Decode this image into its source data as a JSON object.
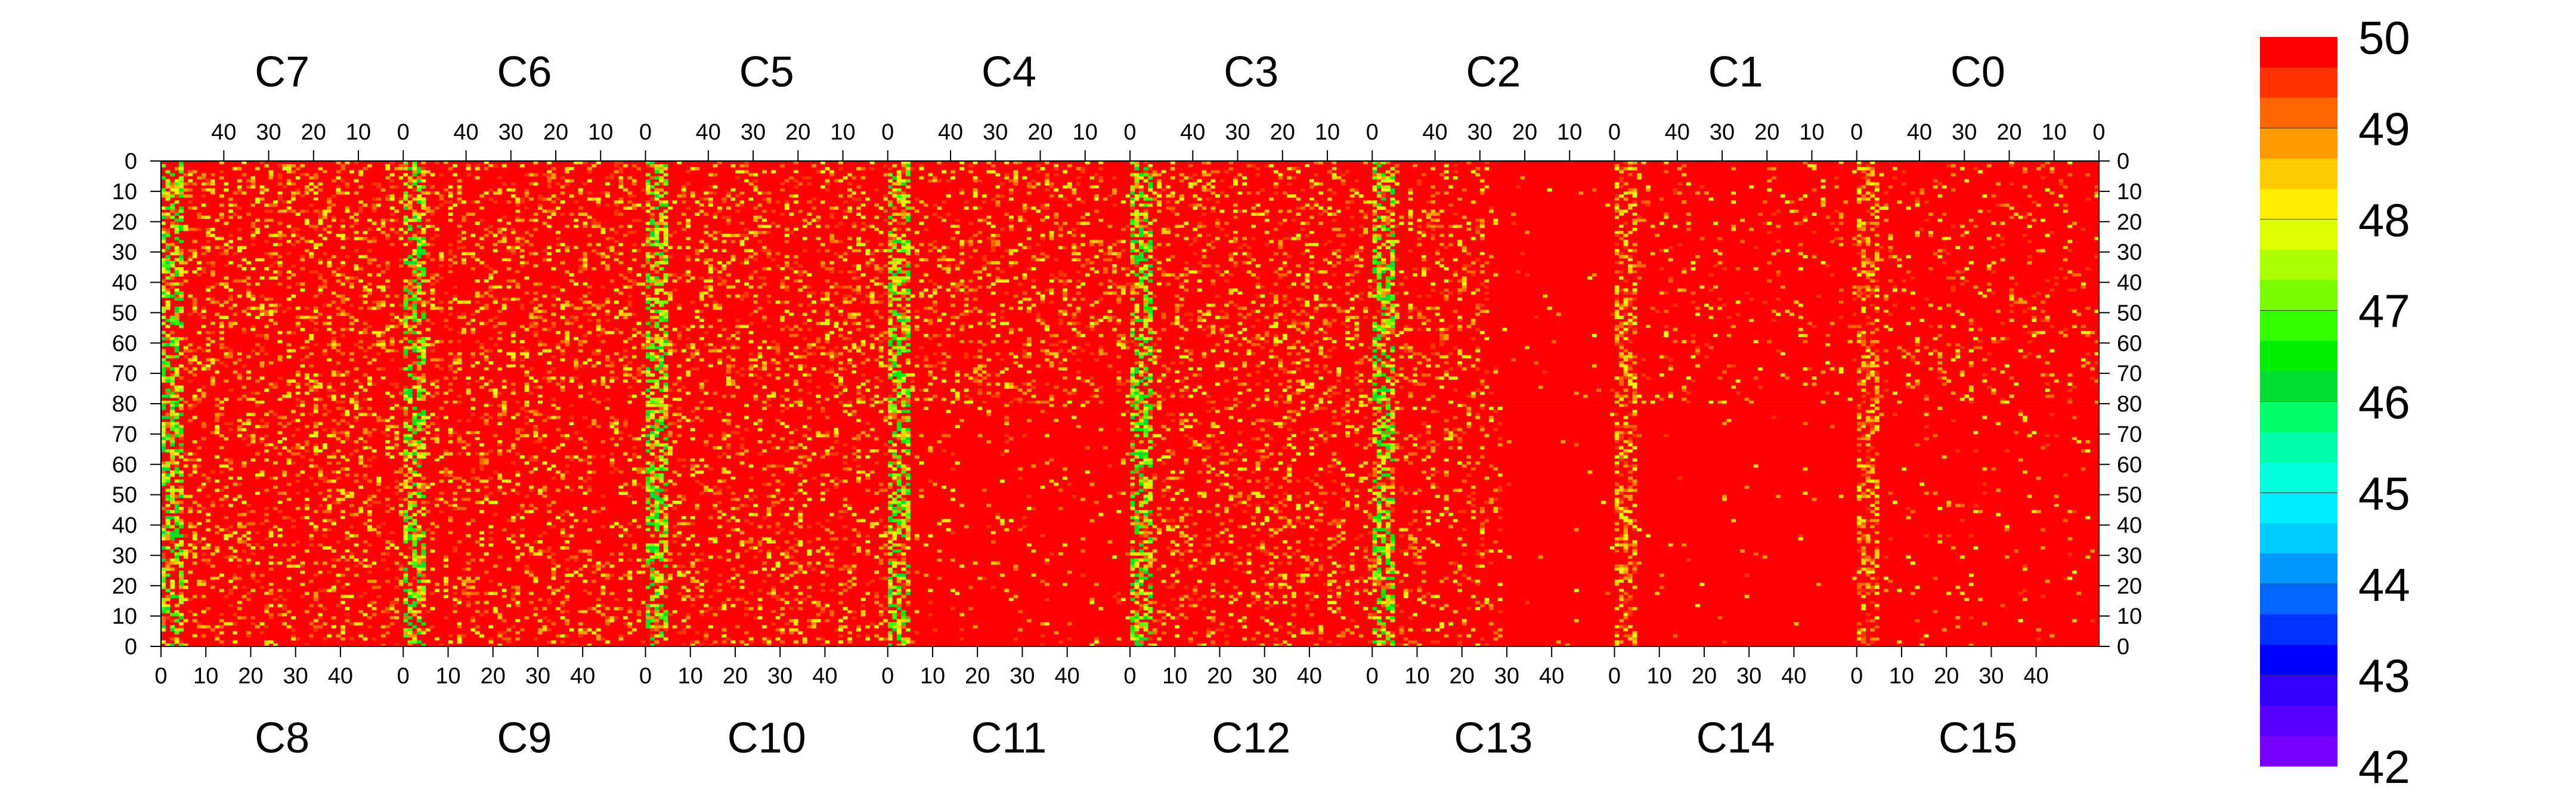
{
  "chart_data": {
    "type": "heatmap",
    "title": "",
    "xlabel": "",
    "ylabel": "",
    "grid": false,
    "top_chips": [
      "C7",
      "C6",
      "C5",
      "C4",
      "C3",
      "C2",
      "C1",
      "C0"
    ],
    "bottom_chips": [
      "C8",
      "C9",
      "C10",
      "C11",
      "C12",
      "C13",
      "C14",
      "C15"
    ],
    "columns_per_chip": 54,
    "rows_per_half": 80,
    "top_axis_ticks": [
      "40",
      "30",
      "20",
      "10",
      "0"
    ],
    "bottom_axis_ticks": [
      "0",
      "10",
      "20",
      "30",
      "40"
    ],
    "y_axis_ticks_top_half": [
      "0",
      "10",
      "20",
      "30",
      "40",
      "50",
      "60",
      "70",
      "80"
    ],
    "y_axis_ticks_bottom_half": [
      "70",
      "60",
      "50",
      "40",
      "30",
      "20",
      "10",
      "0"
    ],
    "zlim": [
      42,
      50
    ],
    "colorbar_labels": [
      "50",
      "49",
      "48",
      "47",
      "46",
      "45",
      "44",
      "43",
      "42"
    ],
    "colorbar_colors": [
      "#ff0000",
      "#ff3300",
      "#ff6600",
      "#ff9900",
      "#ffcc00",
      "#ffee00",
      "#ddff00",
      "#aaff00",
      "#77ff00",
      "#33ff00",
      "#00ee00",
      "#00dd33",
      "#00ff66",
      "#00ffaa",
      "#00ffdd",
      "#00eeff",
      "#00ccff",
      "#0099ff",
      "#0066ff",
      "#0033ff",
      "#0000ff",
      "#3300ff",
      "#5500ff",
      "#7700ff"
    ],
    "low_value_band_columns_note_values": {
      "dominant_value": 50,
      "typical_min": 46
    }
  }
}
